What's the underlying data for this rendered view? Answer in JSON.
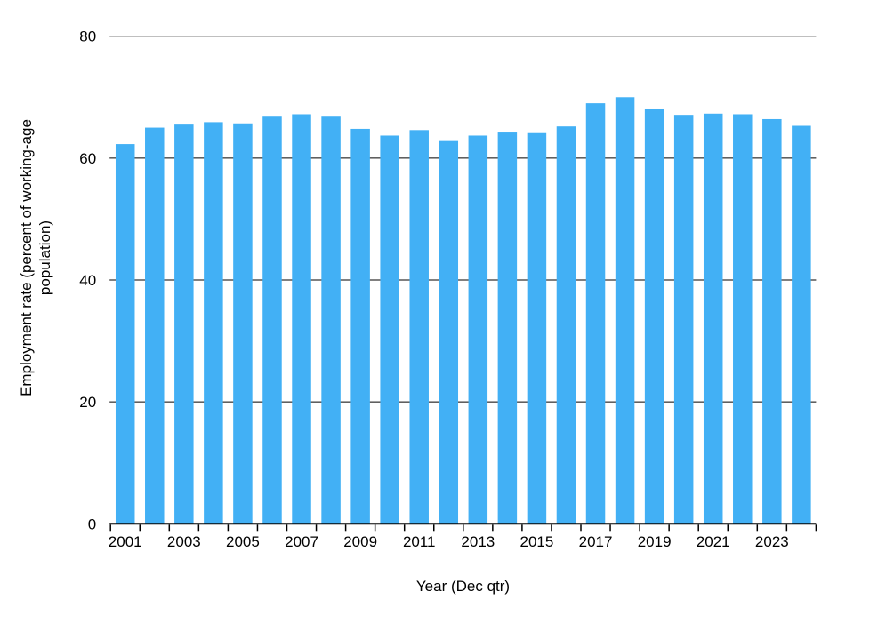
{
  "chart_data": {
    "type": "bar",
    "title": "",
    "xlabel": "Year (Dec qtr)",
    "ylabel": "Employment rate (percent of working-age population)",
    "ylabel_lines": [
      "Employment rate (percent of working-age",
      "population)"
    ],
    "categories": [
      2001,
      2002,
      2003,
      2004,
      2005,
      2006,
      2007,
      2008,
      2009,
      2010,
      2011,
      2012,
      2013,
      2014,
      2015,
      2016,
      2017,
      2018,
      2019,
      2020,
      2021,
      2022,
      2023,
      2024
    ],
    "values": [
      62.3,
      65.0,
      65.5,
      65.9,
      65.7,
      66.8,
      67.2,
      66.8,
      64.8,
      63.7,
      64.6,
      62.8,
      63.7,
      64.2,
      64.1,
      65.2,
      69.0,
      70.0,
      68.0,
      67.1,
      67.3,
      67.2,
      66.4,
      65.3
    ],
    "x_tick_labels": [
      "2001",
      "2003",
      "2005",
      "2007",
      "2009",
      "2011",
      "2013",
      "2015",
      "2017",
      "2019",
      "2021",
      "2023"
    ],
    "y_ticks": [
      0,
      20,
      40,
      60,
      80
    ],
    "ylim": [
      0,
      80
    ],
    "grid": true,
    "legend": false,
    "bar_color": "#42B0F5",
    "axis_color": "#000000",
    "background_color": "#FFFFFF"
  }
}
